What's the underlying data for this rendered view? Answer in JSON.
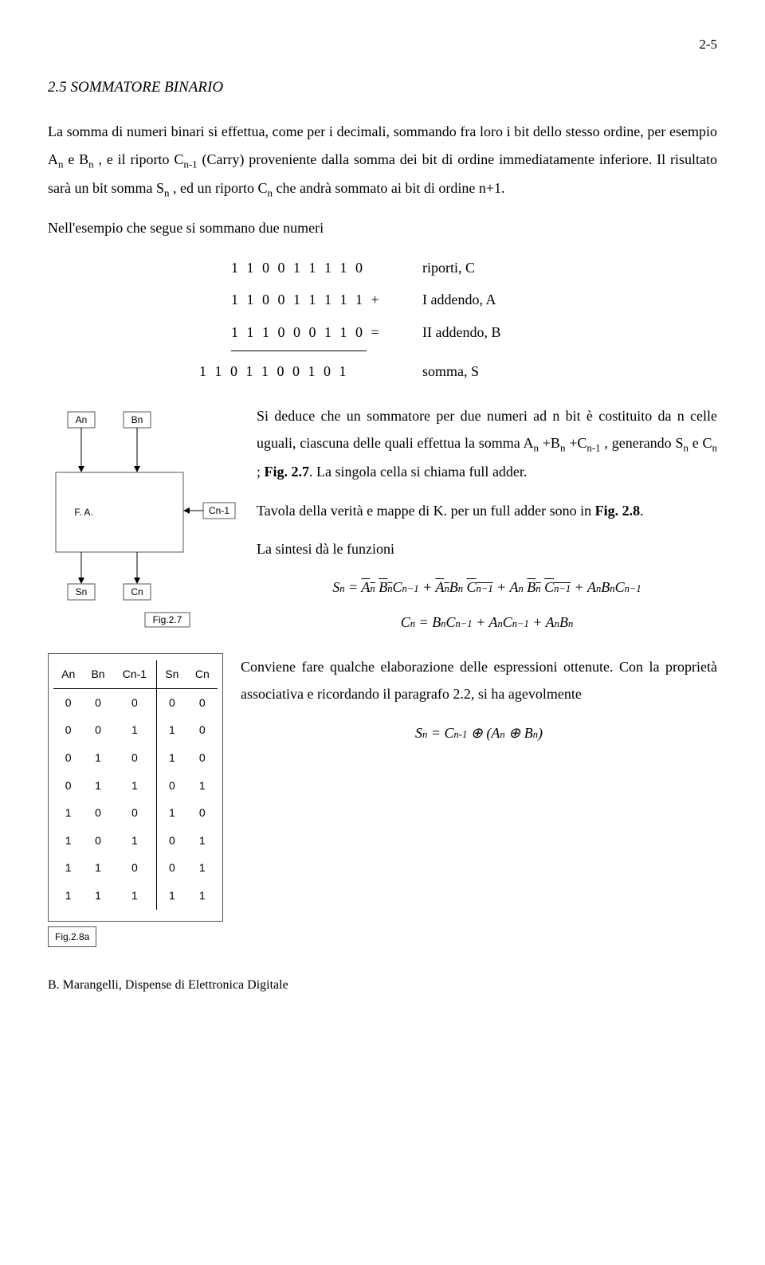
{
  "page_number": "2-5",
  "section_title": "2.5 SOMMATORE BINARIO",
  "para1_a": "La somma di numeri binari si effettua, come per i decimali, sommando fra loro i bit dello stesso ordine, per esempio A",
  "para1_b": " e B",
  "para1_c": ", e  il riporto C",
  "para1_d": " (Carry) proveniente dalla somma dei bit di ordine immediatamente inferiore. Il risultato sarà un bit somma S",
  "para1_e": ", ed un  riporto C",
  "para1_f": " che andrà sommato ai bit di ordine n+1.",
  "para2": "Nell'esempio che segue si sommano due numeri",
  "example": {
    "rows": [
      {
        "bits": "1 1 0 0 1 1 1 1 0",
        "label": "riporti, C"
      },
      {
        "bits": "1 1 0 0 1 1 1 1 1 +",
        "label": "I addendo, A"
      },
      {
        "bits": "1 1 1 0 0 0 1 1 0 =",
        "label": "II addendo, B"
      }
    ],
    "sum": {
      "bits": "1 1 0 1 1 0 0 1 0 1",
      "label": "somma, S"
    }
  },
  "mid_a": "Si deduce che un sommatore  per due numeri ad n bit è costituito da n celle uguali, ciascuna delle quali effettua la somma   A",
  "mid_b": "+B",
  "mid_c": "+C",
  "mid_d": ", generando S",
  "mid_e": " e C",
  "mid_f": "; ",
  "mid_fig27": "Fig. 2.7",
  "mid_g": ". La singola cella si  chiama full adder.",
  "mid_para2": "Tavola della verità e mappe di K. per un full adder sono in",
  "mid_fig28": "Fig. 2.8",
  "mid_para2_end": ".",
  "mid_para3": "La sintesi dà le funzioni",
  "fa_diagram": {
    "An": "An",
    "Bn": "Bn",
    "FA": "F. A.",
    "Cn1": "Cn-1",
    "Sn": "Sn",
    "Cn": "Cn",
    "figlabel": "Fig.2.7"
  },
  "truth_table": {
    "headers": [
      "An",
      "Bn",
      "Cn-1",
      "Sn",
      "Cn"
    ],
    "rows": [
      [
        "0",
        "0",
        "0",
        "0",
        "0"
      ],
      [
        "0",
        "0",
        "1",
        "1",
        "0"
      ],
      [
        "0",
        "1",
        "0",
        "1",
        "0"
      ],
      [
        "0",
        "1",
        "1",
        "0",
        "1"
      ],
      [
        "1",
        "0",
        "0",
        "1",
        "0"
      ],
      [
        "1",
        "0",
        "1",
        "0",
        "1"
      ],
      [
        "1",
        "1",
        "0",
        "0",
        "1"
      ],
      [
        "1",
        "1",
        "1",
        "1",
        "1"
      ]
    ],
    "figlabel": "Fig.2.8a"
  },
  "eq_S": {
    "lhs": "S",
    "sub_lhs": "n",
    "eq": " = ",
    "t1a": "A",
    "t1b": "B",
    "t1c": "C",
    "plus": " + "
  },
  "eq_C": {
    "full": "Cₙ = BₙCₙ₋₁ + AₙCₙ₋₁ + AₙBₙ"
  },
  "conv_para": "Conviene fare qualche elaborazione delle espressioni ottenute. Con la proprietà associativa e ricordando il paragrafo 2.2, si  ha agevolmente",
  "xor_eq": "Sₙ = Cₙ₋₁ ⊕ (Aₙ ⊕ Bₙ)",
  "footer": "B. Marangelli, Dispense di Elettronica Digitale"
}
